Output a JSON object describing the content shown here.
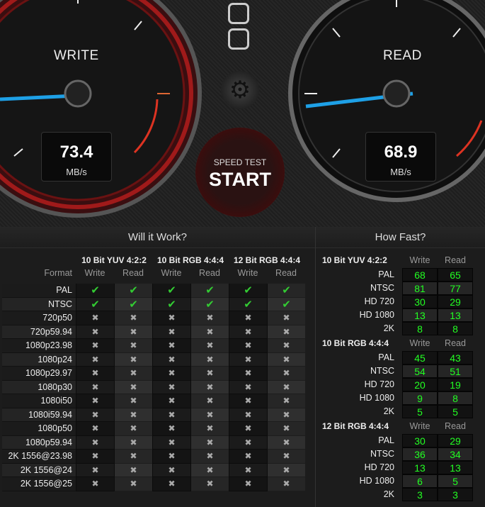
{
  "gauges": {
    "write": {
      "label": "WRITE",
      "value": "73.4",
      "unit": "MB/s"
    },
    "read": {
      "label": "READ",
      "value": "68.9",
      "unit": "MB/s"
    }
  },
  "start": {
    "line1": "SPEED TEST",
    "line2": "START"
  },
  "colors": {
    "accent_red": "#d22222",
    "needle": "#1ea0e6",
    "value_green": "#22ff22",
    "check_green": "#33cc33"
  },
  "will_it_work": {
    "title": "Will it Work?",
    "format_label": "Format",
    "groups": [
      "10 Bit YUV 4:2:2",
      "10 Bit RGB 4:4:4",
      "12 Bit RGB 4:4:4"
    ],
    "subcols": [
      "Write",
      "Read",
      "Write",
      "Read",
      "Write",
      "Read"
    ],
    "rows": [
      {
        "format": "PAL",
        "ok": [
          true,
          true,
          true,
          true,
          true,
          true
        ]
      },
      {
        "format": "NTSC",
        "ok": [
          true,
          true,
          true,
          true,
          true,
          true
        ]
      },
      {
        "format": "720p50",
        "ok": [
          false,
          false,
          false,
          false,
          false,
          false
        ]
      },
      {
        "format": "720p59.94",
        "ok": [
          false,
          false,
          false,
          false,
          false,
          false
        ]
      },
      {
        "format": "1080p23.98",
        "ok": [
          false,
          false,
          false,
          false,
          false,
          false
        ]
      },
      {
        "format": "1080p24",
        "ok": [
          false,
          false,
          false,
          false,
          false,
          false
        ]
      },
      {
        "format": "1080p29.97",
        "ok": [
          false,
          false,
          false,
          false,
          false,
          false
        ]
      },
      {
        "format": "1080p30",
        "ok": [
          false,
          false,
          false,
          false,
          false,
          false
        ]
      },
      {
        "format": "1080i50",
        "ok": [
          false,
          false,
          false,
          false,
          false,
          false
        ]
      },
      {
        "format": "1080i59.94",
        "ok": [
          false,
          false,
          false,
          false,
          false,
          false
        ]
      },
      {
        "format": "1080p50",
        "ok": [
          false,
          false,
          false,
          false,
          false,
          false
        ]
      },
      {
        "format": "1080p59.94",
        "ok": [
          false,
          false,
          false,
          false,
          false,
          false
        ]
      },
      {
        "format": "2K 1556@23.98",
        "ok": [
          false,
          false,
          false,
          false,
          false,
          false
        ]
      },
      {
        "format": "2K 1556@24",
        "ok": [
          false,
          false,
          false,
          false,
          false,
          false
        ]
      },
      {
        "format": "2K 1556@25",
        "ok": [
          false,
          false,
          false,
          false,
          false,
          false
        ]
      }
    ]
  },
  "how_fast": {
    "title": "How Fast?",
    "write_label": "Write",
    "read_label": "Read",
    "sections": [
      {
        "name": "10 Bit YUV 4:2:2",
        "rows": [
          {
            "format": "PAL",
            "write": "68",
            "read": "65"
          },
          {
            "format": "NTSC",
            "write": "81",
            "read": "77"
          },
          {
            "format": "HD 720",
            "write": "30",
            "read": "29"
          },
          {
            "format": "HD 1080",
            "write": "13",
            "read": "13"
          },
          {
            "format": "2K",
            "write": "8",
            "read": "8"
          }
        ]
      },
      {
        "name": "10 Bit RGB 4:4:4",
        "rows": [
          {
            "format": "PAL",
            "write": "45",
            "read": "43"
          },
          {
            "format": "NTSC",
            "write": "54",
            "read": "51"
          },
          {
            "format": "HD 720",
            "write": "20",
            "read": "19"
          },
          {
            "format": "HD 1080",
            "write": "9",
            "read": "8"
          },
          {
            "format": "2K",
            "write": "5",
            "read": "5"
          }
        ]
      },
      {
        "name": "12 Bit RGB 4:4:4",
        "rows": [
          {
            "format": "PAL",
            "write": "30",
            "read": "29"
          },
          {
            "format": "NTSC",
            "write": "36",
            "read": "34"
          },
          {
            "format": "HD 720",
            "write": "13",
            "read": "13"
          },
          {
            "format": "HD 1080",
            "write": "6",
            "read": "5"
          },
          {
            "format": "2K",
            "write": "3",
            "read": "3"
          }
        ]
      }
    ]
  }
}
